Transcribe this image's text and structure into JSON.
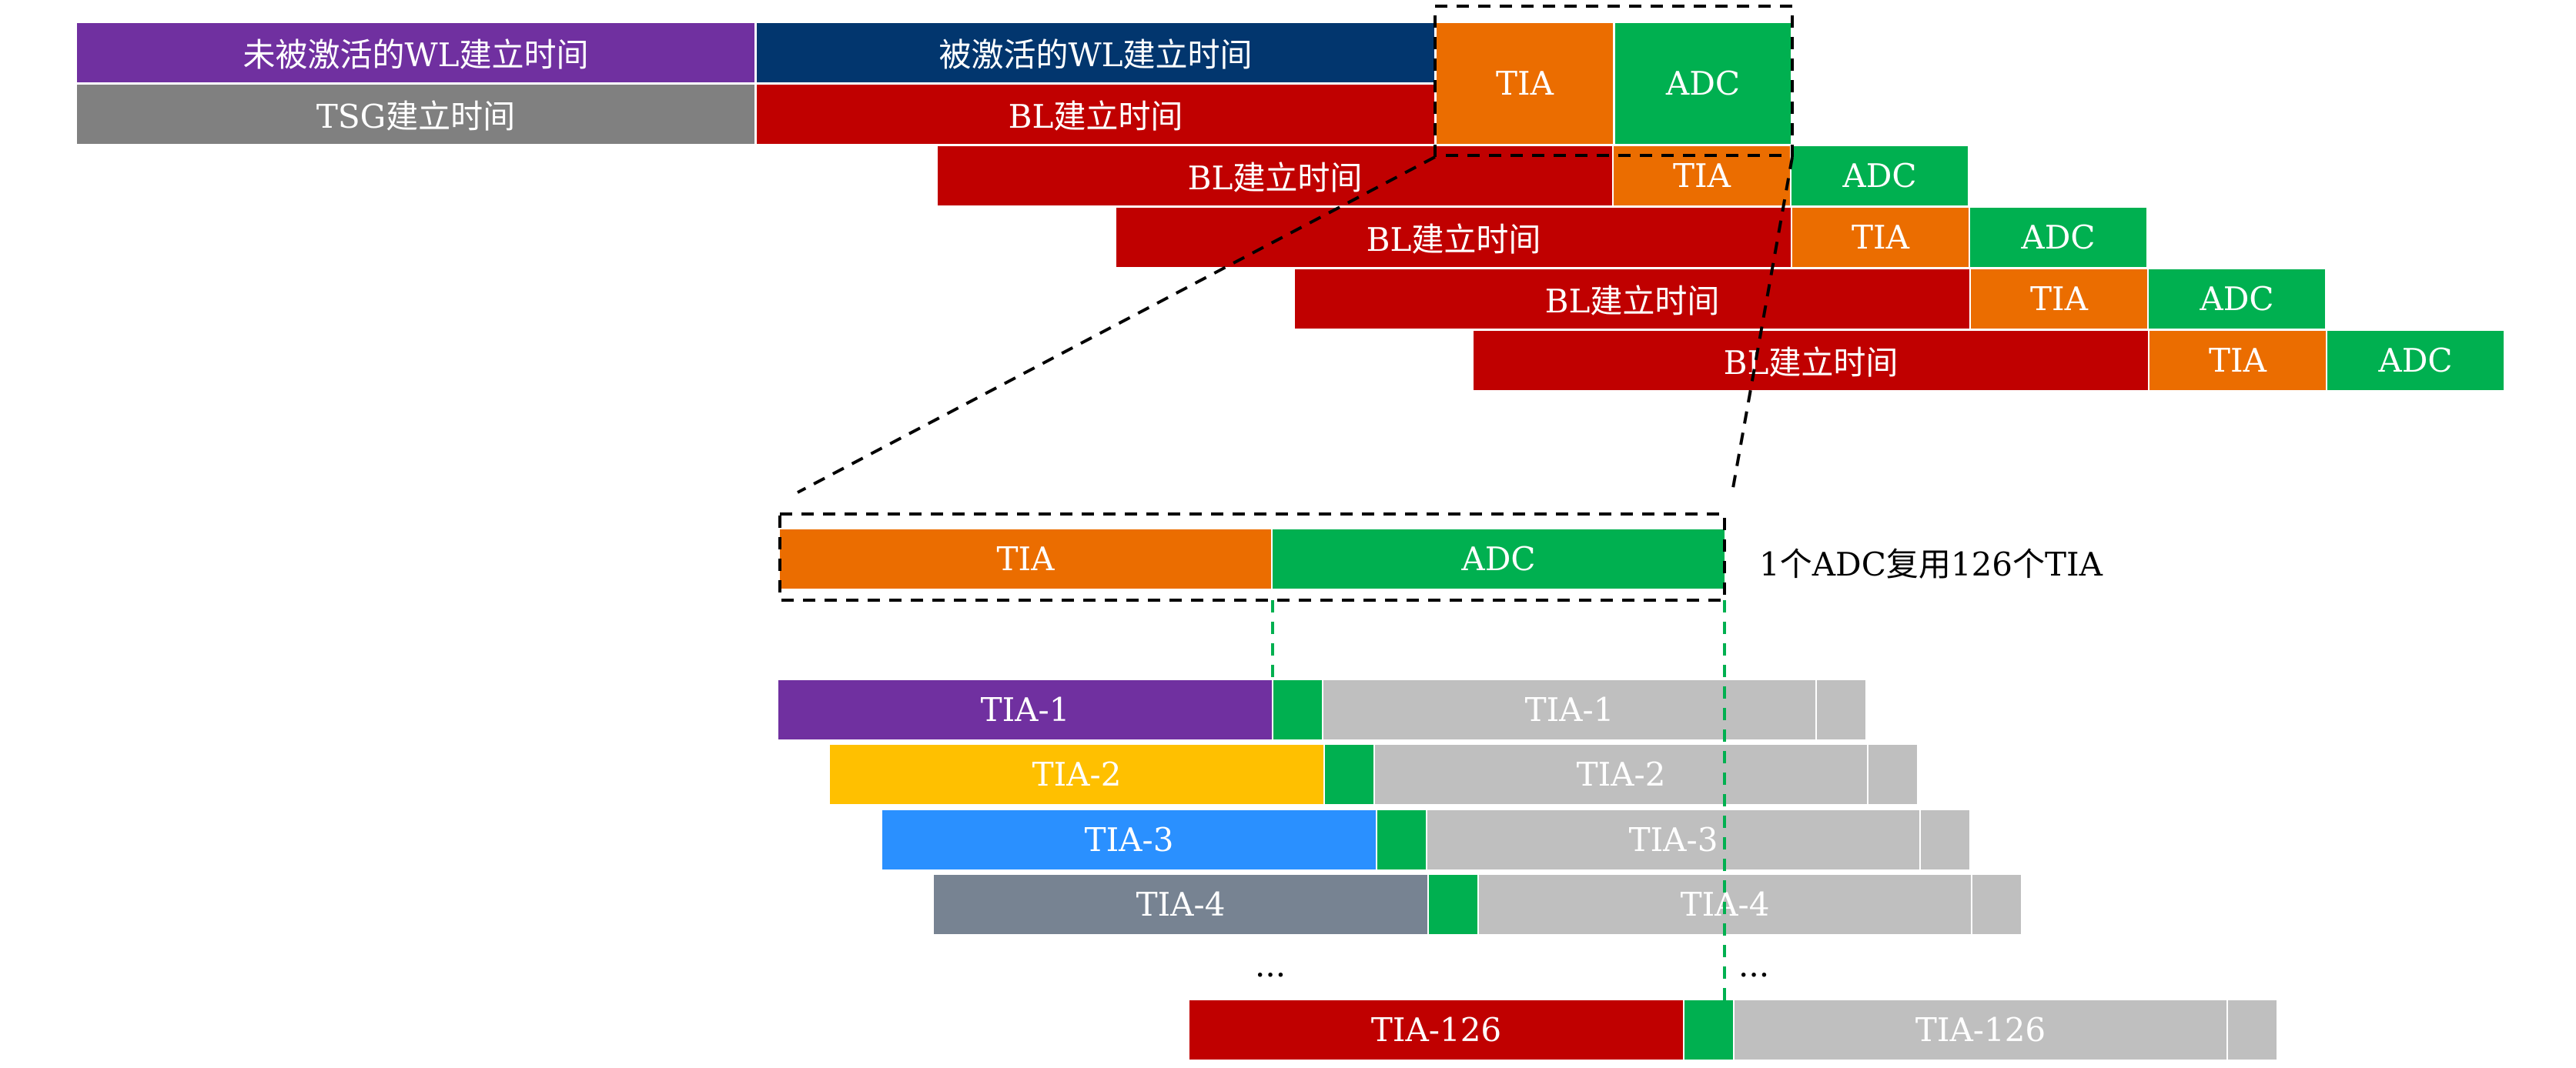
{
  "colors": {
    "purple": "#7030A0",
    "navy": "#02366E",
    "gray": "#808080",
    "red": "#C00000",
    "orange": "#EB6D00",
    "green": "#00B050",
    "yellow": "#FFC000",
    "blue": "#2A90FF",
    "slate": "#778392",
    "lightgray": "#BFBFBF"
  },
  "top": {
    "unactivated_wl": "未被激活的WL建立时间",
    "activated_wl": "被激活的WL建立时间",
    "tsg": "TSG建立时间",
    "bl": "BL建立时间",
    "tia": "TIA",
    "adc": "ADC"
  },
  "zoom": {
    "tia": "TIA",
    "adc": "ADC",
    "note": "1个ADC复用126个TIA"
  },
  "mux_rows": [
    {
      "label": "TIA-1",
      "color": "purple"
    },
    {
      "label": "TIA-2",
      "color": "yellow"
    },
    {
      "label": "TIA-3",
      "color": "blue"
    },
    {
      "label": "TIA-4",
      "color": "slate"
    },
    {
      "label": "TIA-126",
      "color": "red"
    }
  ],
  "ellipsis": "..."
}
